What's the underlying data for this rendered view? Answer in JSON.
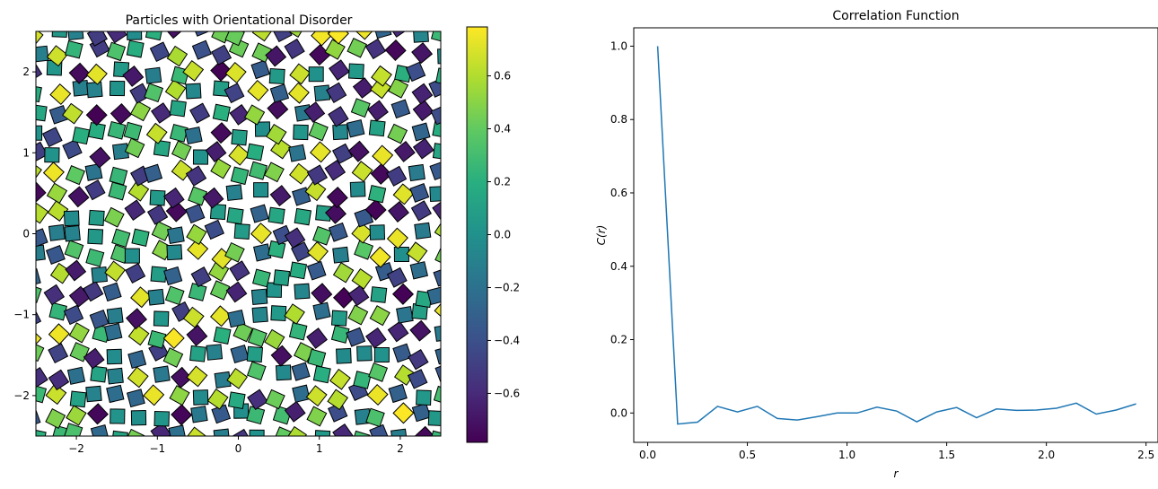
{
  "chart_data": [
    {
      "type": "scatter",
      "title": "Particles with Orientational Disorder",
      "xlabel": "",
      "ylabel": "",
      "xlim": [
        -2.5,
        2.5
      ],
      "ylim": [
        -2.5,
        2.5
      ],
      "xticks": [
        -2,
        -1,
        0,
        1,
        2
      ],
      "xtick_labels": [
        "−2",
        "−1",
        "0",
        "1",
        "2"
      ],
      "yticks": [
        -2,
        -1,
        0,
        1,
        2
      ],
      "ytick_labels": [
        "−2",
        "−1",
        "0",
        "1",
        "2"
      ],
      "marker": "square",
      "lattice_spacing": 0.25,
      "lattice_range": [
        -2.5,
        2.5
      ],
      "position_jitter": 0.06,
      "orientation_range": [
        -0.785,
        0.785
      ],
      "colormap": "viridis",
      "colorbar": {
        "vmin": -0.785,
        "vmax": 0.785,
        "ticks": [
          -0.6,
          -0.4,
          -0.2,
          0.0,
          0.2,
          0.4,
          0.6
        ],
        "tick_labels": [
          "−0.6",
          "−0.4",
          "−0.2",
          "0.0",
          "0.2",
          "0.4",
          "0.6"
        ]
      },
      "grid": false
    },
    {
      "type": "line",
      "title": "Correlation Function",
      "xlabel": "r",
      "ylabel": "C(r)",
      "xlim": [
        -0.07,
        2.56
      ],
      "ylim": [
        -0.08,
        1.05
      ],
      "xticks": [
        0,
        0.5,
        1,
        1.5,
        2,
        2.5
      ],
      "xtick_labels": [
        "0.0",
        "0.5",
        "1.0",
        "1.5",
        "2.0",
        "2.5"
      ],
      "yticks": [
        0,
        0.2,
        0.4,
        0.6,
        0.8,
        1.0
      ],
      "ytick_labels": [
        "0.0",
        "0.2",
        "0.4",
        "0.6",
        "0.8",
        "1.0"
      ],
      "x": [
        0.05,
        0.15,
        0.25,
        0.35,
        0.45,
        0.55,
        0.65,
        0.75,
        0.85,
        0.95,
        1.05,
        1.15,
        1.25,
        1.35,
        1.45,
        1.55,
        1.65,
        1.75,
        1.85,
        1.95,
        2.05,
        2.15,
        2.25,
        2.35,
        2.45
      ],
      "series": [
        {
          "values": [
            1.0,
            -0.03,
            -0.025,
            0.018,
            0.003,
            0.018,
            -0.015,
            -0.019,
            -0.01,
            0.0,
            0.0,
            0.016,
            0.005,
            -0.024,
            0.003,
            0.015,
            -0.013,
            0.011,
            0.007,
            0.008,
            0.013,
            0.027,
            -0.003,
            0.008,
            0.025
          ],
          "color": "#1f77b4"
        }
      ],
      "grid": false
    }
  ]
}
